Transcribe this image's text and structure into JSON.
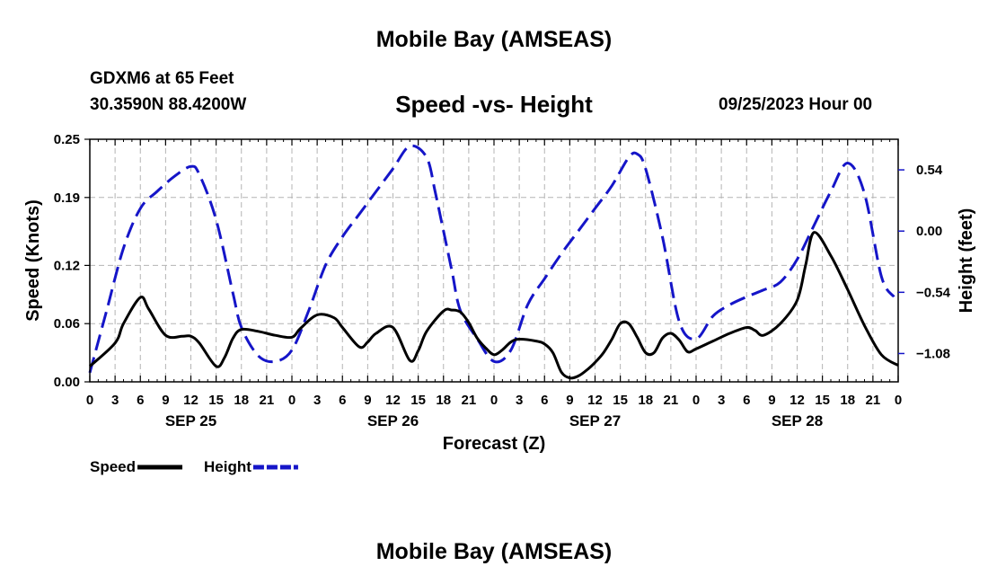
{
  "header": {
    "title": "Mobile Bay (AMSEAS)",
    "station": "GDXM6 at 65 Feet",
    "coords": "30.3590N  88.4200W",
    "subtitle": "Speed -vs- Height",
    "datetime": "09/25/2023 Hour 00"
  },
  "footer": {
    "title": "Mobile Bay (AMSEAS)"
  },
  "chart_data": {
    "type": "line",
    "xlabel": "Forecast (Z)",
    "ylabel_left": "Speed (Knots)",
    "ylabel_right": "Height (feet)",
    "x_range": [
      0,
      96
    ],
    "x_ticks": [
      0,
      3,
      6,
      9,
      12,
      15,
      18,
      21,
      24,
      27,
      30,
      33,
      36,
      39,
      42,
      45,
      48,
      51,
      54,
      57,
      60,
      63,
      66,
      69,
      72,
      75,
      78,
      81,
      84,
      87,
      90,
      93,
      96
    ],
    "x_tick_labels": [
      "0",
      "3",
      "6",
      "9",
      "12",
      "15",
      "18",
      "21",
      "0",
      "3",
      "6",
      "9",
      "12",
      "15",
      "18",
      "21",
      "0",
      "3",
      "6",
      "9",
      "12",
      "15",
      "18",
      "21",
      "0",
      "3",
      "6",
      "9",
      "12",
      "15",
      "18",
      "21",
      "0"
    ],
    "day_labels": [
      {
        "x": 12,
        "label": "SEP 25"
      },
      {
        "x": 36,
        "label": "SEP 26"
      },
      {
        "x": 60,
        "label": "SEP 27"
      },
      {
        "x": 84,
        "label": "SEP 28"
      }
    ],
    "y_left": {
      "range": [
        0,
        0.25
      ],
      "ticks": [
        0.0,
        0.06,
        0.12,
        0.19,
        0.25
      ],
      "tick_labels": [
        "0.00",
        "0.06",
        "0.12",
        "0.19",
        "0.25"
      ]
    },
    "y_right": {
      "range": [
        -1.33,
        0.81
      ],
      "ticks": [
        0.54,
        0.0,
        -0.54,
        -1.08
      ],
      "tick_labels": [
        "0.54",
        "0.00",
        "−0.54",
        "−1.08"
      ]
    },
    "grid": true,
    "series": [
      {
        "name": "Speed",
        "axis": "left",
        "color": "#000000",
        "dash": "solid",
        "x": [
          0,
          3,
          4,
          6,
          7,
          9,
          11,
          12,
          13,
          15,
          16,
          17,
          18,
          20,
          22,
          24,
          25,
          27,
          29,
          30,
          32,
          33,
          34,
          36,
          38,
          39,
          40,
          42,
          43,
          44,
          45,
          46,
          47,
          48,
          49,
          50,
          51,
          53,
          54,
          55,
          56,
          57,
          58,
          59,
          60,
          61,
          62,
          63,
          64,
          65,
          66,
          67,
          68,
          69,
          70,
          71,
          72,
          74,
          76,
          78,
          79,
          80,
          82,
          84,
          85,
          86,
          88,
          90,
          92,
          94,
          96
        ],
        "y": [
          0.016,
          0.04,
          0.06,
          0.087,
          0.075,
          0.048,
          0.047,
          0.047,
          0.04,
          0.016,
          0.025,
          0.045,
          0.054,
          0.052,
          0.048,
          0.046,
          0.055,
          0.069,
          0.066,
          0.056,
          0.036,
          0.041,
          0.05,
          0.056,
          0.022,
          0.032,
          0.052,
          0.073,
          0.074,
          0.072,
          0.061,
          0.045,
          0.035,
          0.028,
          0.033,
          0.041,
          0.044,
          0.042,
          0.039,
          0.03,
          0.01,
          0.004,
          0.006,
          0.012,
          0.02,
          0.03,
          0.044,
          0.06,
          0.06,
          0.046,
          0.03,
          0.03,
          0.045,
          0.05,
          0.043,
          0.031,
          0.034,
          0.042,
          0.05,
          0.056,
          0.053,
          0.048,
          0.06,
          0.084,
          0.12,
          0.154,
          0.13,
          0.095,
          0.058,
          0.028,
          0.017
        ]
      },
      {
        "name": "Height",
        "axis": "right",
        "color": "#1515c8",
        "dash": "dashed",
        "x": [
          0,
          2,
          4,
          6,
          8,
          10,
          12,
          13,
          15,
          17,
          18,
          20,
          22,
          24,
          26,
          28,
          30,
          32,
          34,
          36,
          38,
          40,
          41,
          42,
          43,
          44,
          46,
          48,
          50,
          52,
          54,
          56,
          58,
          60,
          62,
          64,
          65,
          66,
          68,
          70,
          72,
          74,
          76,
          78,
          80,
          82,
          84,
          86,
          88,
          90,
          92,
          94,
          95.5
        ],
        "y": [
          -1.25,
          -0.7,
          -0.15,
          0.2,
          0.35,
          0.48,
          0.57,
          0.5,
          0.1,
          -0.55,
          -0.85,
          -1.1,
          -1.15,
          -1.05,
          -0.7,
          -0.3,
          -0.05,
          0.15,
          0.35,
          0.55,
          0.75,
          0.65,
          0.35,
          0.0,
          -0.35,
          -0.7,
          -0.95,
          -1.15,
          -1.05,
          -0.65,
          -0.42,
          -0.2,
          0.0,
          0.2,
          0.4,
          0.65,
          0.68,
          0.55,
          -0.05,
          -0.8,
          -0.95,
          -0.75,
          -0.65,
          -0.58,
          -0.52,
          -0.45,
          -0.25,
          0.05,
          0.35,
          0.6,
          0.33,
          -0.4,
          -0.58
        ]
      }
    ],
    "legend": [
      {
        "label": "Speed",
        "color": "#000000",
        "dash": "solid"
      },
      {
        "label": "Height",
        "color": "#1515c8",
        "dash": "dashed"
      }
    ]
  }
}
